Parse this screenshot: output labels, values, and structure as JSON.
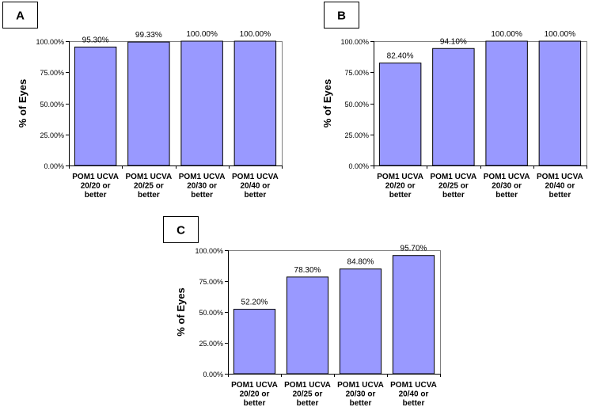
{
  "chart_data": [
    {
      "panel": "A",
      "type": "bar",
      "ylabel": "% of Eyes",
      "ylim": [
        0,
        100
      ],
      "yticks": [
        "0.00%",
        "25.00%",
        "50.00%",
        "75.00%",
        "100.00%"
      ],
      "categories": [
        [
          "POM1 UCVA",
          "20/20 or",
          "better"
        ],
        [
          "POM1 UCVA",
          "20/25 or",
          "better"
        ],
        [
          "POM1 UCVA",
          "20/30 or",
          "better"
        ],
        [
          "POM1 UCVA",
          "20/40 or",
          "better"
        ]
      ],
      "values": [
        95.3,
        99.33,
        100,
        100
      ],
      "data_labels": [
        "95.30%",
        "99.33%",
        "100.00%",
        "100.00%"
      ],
      "bar_color": "#9999ff",
      "grid": false
    },
    {
      "panel": "B",
      "type": "bar",
      "ylabel": "% of Eyes",
      "ylim": [
        0,
        100
      ],
      "yticks": [
        "0.00%",
        "25.00%",
        "50.00%",
        "75.00%",
        "100.00%"
      ],
      "categories": [
        [
          "POM1 UCVA",
          "20/20 or",
          "better"
        ],
        [
          "POM1 UCVA",
          "20/25 or",
          "better"
        ],
        [
          "POM1 UCVA",
          "20/30 or",
          "better"
        ],
        [
          "POM1 UCVA",
          "20/40 or",
          "better"
        ]
      ],
      "values": [
        82.4,
        94.1,
        100,
        100
      ],
      "data_labels": [
        "82.40%",
        "94.10%",
        "100.00%",
        "100.00%"
      ],
      "bar_color": "#9999ff",
      "grid": false
    },
    {
      "panel": "C",
      "type": "bar",
      "ylabel": "% of Eyes",
      "ylim": [
        0,
        100
      ],
      "yticks": [
        "0.00%",
        "25.00%",
        "50.00%",
        "75.00%",
        "100.00%"
      ],
      "categories": [
        [
          "POM1 UCVA",
          "20/20 or",
          "better"
        ],
        [
          "POM1 UCVA",
          "20/25 or",
          "better"
        ],
        [
          "POM1 UCVA",
          "20/30 or",
          "better"
        ],
        [
          "POM1 UCVA",
          "20/40 or",
          "better"
        ]
      ],
      "values": [
        52.2,
        78.3,
        84.8,
        95.7
      ],
      "data_labels": [
        "52.20%",
        "78.30%",
        "84.80%",
        "95.70%"
      ],
      "bar_color": "#9999ff",
      "grid": false
    }
  ]
}
